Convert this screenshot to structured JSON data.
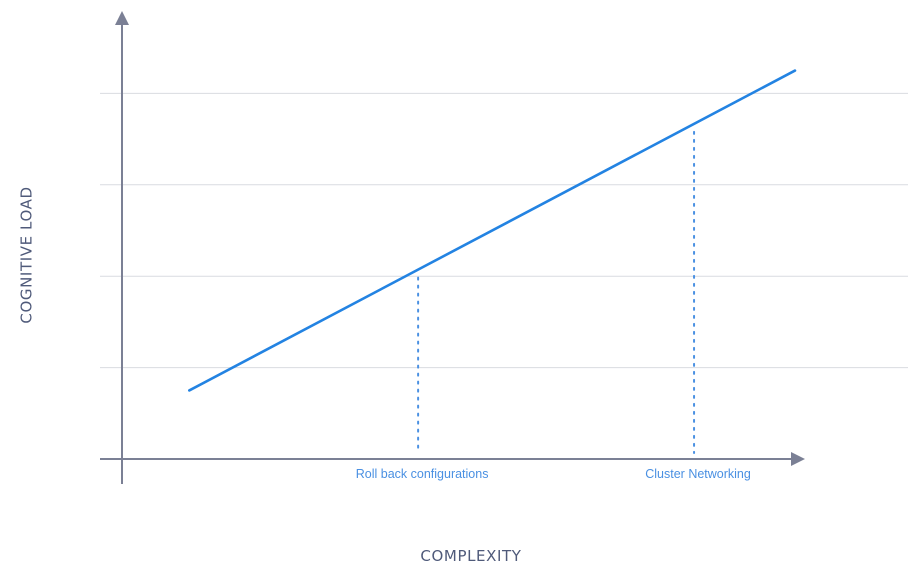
{
  "chart_data": {
    "type": "line",
    "title": "",
    "xlabel": "COMPLEXITY",
    "ylabel": "COGNITIVE LOAD",
    "xlim": [
      0,
      10
    ],
    "ylim": [
      0,
      10
    ],
    "grid": true,
    "y_grid_values": [
      2,
      4,
      6,
      8
    ],
    "series": [
      {
        "x": [
          1,
          10
        ],
        "y": [
          1.5,
          8.5
        ]
      }
    ],
    "annotations": [
      {
        "label": "Roll back configurations",
        "x": 4.4
      },
      {
        "label": "Cluster Networking",
        "x": 8.5
      }
    ],
    "colors": {
      "axis": "#7b8095",
      "grid": "#d9dbe1",
      "line": "#2383e2",
      "annotation": "#4a90e2",
      "label": "#4f5a7a"
    }
  }
}
